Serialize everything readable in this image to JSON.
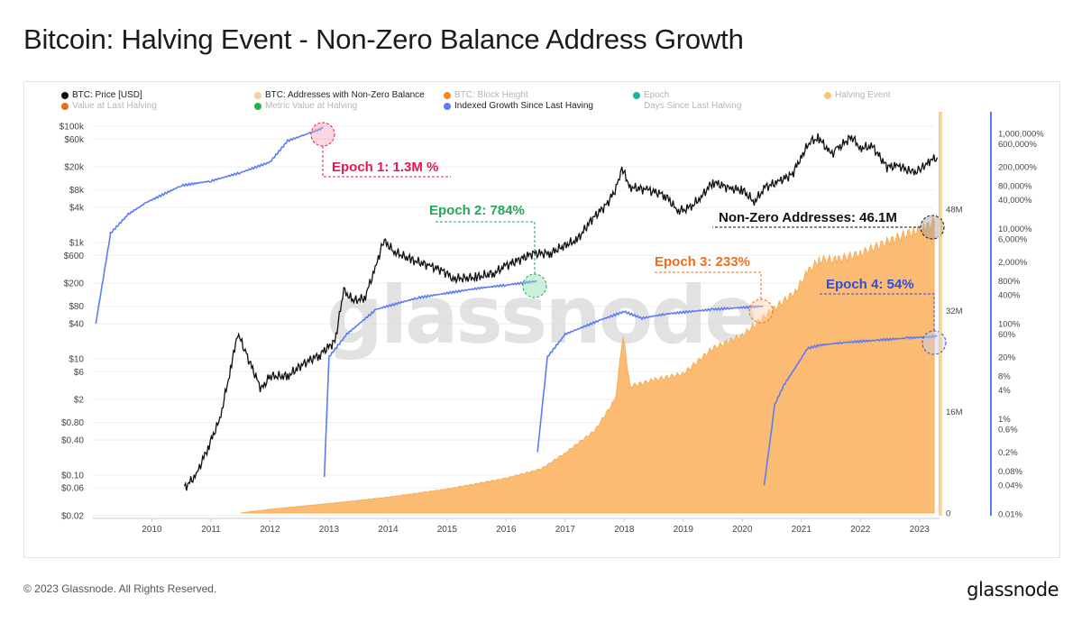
{
  "title": "Bitcoin: Halving Event - Non-Zero Balance Address Growth",
  "footer": "© 2023 Glassnode. All Rights Reserved.",
  "brand": "glassnode",
  "watermark": "glassnode",
  "legend": [
    {
      "label": "BTC: Price [USD]",
      "color": "#111111",
      "muted": false
    },
    {
      "label": "BTC: Addresses with Non-Zero Balance",
      "color": "#f8cfa0",
      "muted": false
    },
    {
      "label": "BTC: Block Height",
      "color": "#f5881f",
      "muted": true
    },
    {
      "label": "Epoch",
      "color": "#1fb3a3",
      "muted": true
    },
    {
      "label": "Halving Event",
      "color": "#f8c47d",
      "muted": true
    },
    {
      "label": "Value at Last Halving",
      "color": "#f26b1d",
      "muted": true
    },
    {
      "label": "Metric Value at Halving",
      "color": "#22b14c",
      "muted": true
    },
    {
      "label": "Indexed Growth Since Last Having",
      "color": "#5b7cf5",
      "muted": false
    },
    {
      "label": "Days Since Last Halving",
      "color": "",
      "muted": true
    }
  ],
  "annotations": {
    "epoch1": "Epoch 1: 1.3M %",
    "epoch2": "Epoch 2: 784%",
    "epoch3": "Epoch 3: 233%",
    "epoch4": "Epoch 4: 54%",
    "addresses": "Non-Zero Addresses: 46.1M"
  },
  "colors": {
    "price": "#111111",
    "addresses_fill": "#fbbb72",
    "growth": "#5b7cf5",
    "halving": "#f8d9a8",
    "epoch1": "#e8174e",
    "epoch2": "#22a85a",
    "epoch3": "#f26b1d",
    "epoch4": "#2b4de3",
    "addresses_anno": "#111111"
  },
  "chart_data": {
    "type": "line",
    "x_ticks": [
      "2010",
      "2011",
      "2012",
      "2013",
      "2014",
      "2015",
      "2016",
      "2017",
      "2018",
      "2019",
      "2020",
      "2021",
      "2022",
      "2023"
    ],
    "y_left_ticks": [
      "$100k",
      "$60k",
      "$20k",
      "$8k",
      "$4k",
      "$1k",
      "$600",
      "$200",
      "$80",
      "$40",
      "$10",
      "$6",
      "$2",
      "$0.80",
      "$0.40",
      "$0.10",
      "$0.06",
      "$0.02"
    ],
    "y_mid_ticks": [
      "48M",
      "32M",
      "16M",
      "0"
    ],
    "y_right_ticks": [
      "1,000,000%",
      "600,000%",
      "200,000%",
      "80,000%",
      "40,000%",
      "10,000%",
      "6,000%",
      "2,000%",
      "800%",
      "400%",
      "100%",
      "60%",
      "20%",
      "8%",
      "4%",
      "1%",
      "0.6%",
      "0.2%",
      "0.08%",
      "0.04%",
      "0.01%"
    ],
    "y_left_scale": "log",
    "y_right_scale": "log",
    "halvings": [
      "2012-11-28",
      "2016-07-09",
      "2020-05-11",
      "2023-04"
    ],
    "series": [
      {
        "name": "BTC: Price [USD]",
        "points": [
          [
            2010.55,
            0.06
          ],
          [
            2010.75,
            0.1
          ],
          [
            2010.95,
            0.3
          ],
          [
            2011.15,
            0.9
          ],
          [
            2011.35,
            8
          ],
          [
            2011.45,
            28
          ],
          [
            2011.6,
            12
          ],
          [
            2011.85,
            3
          ],
          [
            2012.0,
            5
          ],
          [
            2012.3,
            5
          ],
          [
            2012.55,
            8
          ],
          [
            2012.85,
            12
          ],
          [
            2013.1,
            20
          ],
          [
            2013.25,
            150
          ],
          [
            2013.4,
            100
          ],
          [
            2013.6,
            110
          ],
          [
            2013.8,
            400
          ],
          [
            2013.92,
            1100
          ],
          [
            2014.1,
            700
          ],
          [
            2014.4,
            500
          ],
          [
            2014.7,
            400
          ],
          [
            2014.95,
            320
          ],
          [
            2015.1,
            240
          ],
          [
            2015.5,
            250
          ],
          [
            2015.8,
            300
          ],
          [
            2016.0,
            400
          ],
          [
            2016.45,
            650
          ],
          [
            2016.75,
            650
          ],
          [
            2017.0,
            900
          ],
          [
            2017.2,
            1100
          ],
          [
            2017.45,
            2500
          ],
          [
            2017.7,
            4500
          ],
          [
            2017.88,
            9000
          ],
          [
            2017.96,
            19000
          ],
          [
            2018.1,
            9000
          ],
          [
            2018.4,
            8000
          ],
          [
            2018.7,
            6500
          ],
          [
            2018.9,
            3500
          ],
          [
            2019.1,
            3800
          ],
          [
            2019.3,
            6000
          ],
          [
            2019.5,
            11000
          ],
          [
            2019.8,
            8500
          ],
          [
            2020.0,
            8000
          ],
          [
            2020.2,
            5000
          ],
          [
            2020.4,
            9000
          ],
          [
            2020.6,
            11000
          ],
          [
            2020.85,
            15000
          ],
          [
            2020.99,
            29000
          ],
          [
            2021.15,
            55000
          ],
          [
            2021.3,
            62000
          ],
          [
            2021.5,
            33000
          ],
          [
            2021.6,
            40000
          ],
          [
            2021.85,
            66000
          ],
          [
            2022.0,
            42000
          ],
          [
            2022.2,
            45000
          ],
          [
            2022.45,
            20000
          ],
          [
            2022.65,
            21000
          ],
          [
            2022.87,
            16000
          ],
          [
            2023.0,
            17000
          ],
          [
            2023.15,
            25000
          ],
          [
            2023.3,
            29000
          ]
        ]
      },
      {
        "name": "BTC: Addresses with Non-Zero Balance",
        "points": [
          [
            2011.5,
            0
          ],
          [
            2012.0,
            0.6
          ],
          [
            2013.0,
            1.5
          ],
          [
            2014.0,
            2.5
          ],
          [
            2015.0,
            3.8
          ],
          [
            2016.0,
            5.5
          ],
          [
            2016.6,
            7
          ],
          [
            2017.0,
            9.5
          ],
          [
            2017.5,
            13
          ],
          [
            2017.85,
            18
          ],
          [
            2017.98,
            28
          ],
          [
            2018.1,
            20
          ],
          [
            2018.5,
            21
          ],
          [
            2019.0,
            22
          ],
          [
            2019.5,
            26
          ],
          [
            2020.0,
            28
          ],
          [
            2020.5,
            32
          ],
          [
            2020.9,
            35
          ],
          [
            2021.1,
            38
          ],
          [
            2021.3,
            40
          ],
          [
            2021.6,
            40
          ],
          [
            2022.0,
            41
          ],
          [
            2022.5,
            43
          ],
          [
            2022.9,
            44.5
          ],
          [
            2023.1,
            45
          ],
          [
            2023.25,
            46.1
          ]
        ]
      },
      {
        "name": "Indexed Growth Since Last Having",
        "points": [
          [
            2009.05,
            100
          ],
          [
            2009.3,
            8000
          ],
          [
            2009.6,
            20000
          ],
          [
            2009.9,
            35000
          ],
          [
            2010.5,
            80000
          ],
          [
            2011.0,
            100000
          ],
          [
            2011.5,
            150000
          ],
          [
            2012.0,
            250000
          ],
          [
            2012.3,
            700000
          ],
          [
            2012.55,
            900000
          ],
          [
            2012.9,
            1300000
          ],
          [
            2012.92,
            0.06
          ],
          [
            2013.0,
            20
          ],
          [
            2013.3,
            60
          ],
          [
            2013.8,
            200
          ],
          [
            2014.5,
            350
          ],
          [
            2015.5,
            550
          ],
          [
            2016.0,
            650
          ],
          [
            2016.52,
            784
          ],
          [
            2016.53,
            0.2
          ],
          [
            2016.7,
            20
          ],
          [
            2017.0,
            60
          ],
          [
            2017.6,
            120
          ],
          [
            2018.0,
            180
          ],
          [
            2018.3,
            130
          ],
          [
            2018.7,
            160
          ],
          [
            2019.5,
            200
          ],
          [
            2020.35,
            233
          ],
          [
            2020.37,
            0.04
          ],
          [
            2020.55,
            2
          ],
          [
            2020.7,
            5
          ],
          [
            2020.95,
            15
          ],
          [
            2021.1,
            30
          ],
          [
            2021.3,
            35
          ],
          [
            2021.7,
            40
          ],
          [
            2022.3,
            45
          ],
          [
            2022.8,
            50
          ],
          [
            2023.3,
            54
          ]
        ]
      }
    ]
  }
}
